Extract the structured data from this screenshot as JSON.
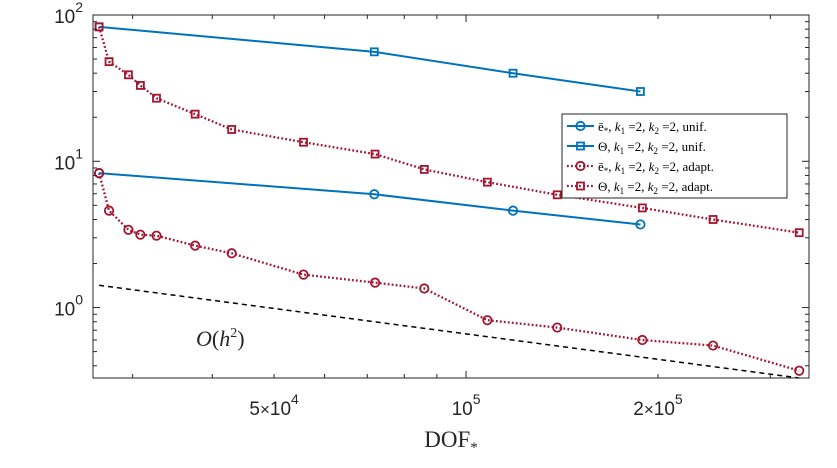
{
  "chart_data": {
    "type": "line",
    "title": "",
    "xlabel": "DOF",
    "xlabel_subscript": "*",
    "ylabel": "",
    "xscale": "log",
    "yscale": "log",
    "xlim": [
      26000,
      345000
    ],
    "ylim": [
      0.33,
      100
    ],
    "grid": false,
    "legend_position": "right",
    "x_ticks": [
      {
        "value": 50000,
        "mantissa": "5",
        "times": "×",
        "base": "10",
        "exp": "4"
      },
      {
        "value": 100000,
        "mantissa": "",
        "times": "",
        "base": "10",
        "exp": "5"
      },
      {
        "value": 200000,
        "mantissa": "2",
        "times": "×",
        "base": "10",
        "exp": "5"
      }
    ],
    "y_ticks": [
      {
        "value": 1,
        "base": "10",
        "exp": "0"
      },
      {
        "value": 10,
        "base": "10",
        "exp": "1"
      },
      {
        "value": 100,
        "base": "10",
        "exp": "2"
      }
    ],
    "series": [
      {
        "name": "ē*, k1 = 2, k2 = 2, unif.",
        "legend_parts": [
          "ē",
          "*",
          ", ",
          "k",
          "1",
          " =2, ",
          "k",
          "2",
          " =2, unif."
        ],
        "color": "#0072bd",
        "marker": "circle",
        "line_style": "solid",
        "x": [
          26580,
          71800,
          118500,
          187700
        ],
        "y": [
          8.3,
          5.95,
          4.6,
          3.7
        ]
      },
      {
        "name": "Θ, k1 = 2, k2 = 2, unif.",
        "legend_parts": [
          "Θ",
          "",
          ", ",
          "k",
          "1",
          " =2, ",
          "k",
          "2",
          " =2, unif."
        ],
        "color": "#0072bd",
        "marker": "square",
        "line_style": "solid",
        "x": [
          26580,
          71800,
          118500,
          187700
        ],
        "y": [
          83,
          56,
          40,
          30
        ]
      },
      {
        "name": "ē*, k1 = 2, k2 = 2, adapt.",
        "legend_parts": [
          "ē",
          "*",
          ", ",
          "k",
          "1",
          " =2, ",
          "k",
          "2",
          " =2, adapt."
        ],
        "color": "#a2142f",
        "marker": "circle",
        "line_style": "dotted",
        "x": [
          26580,
          27550,
          29550,
          30850,
          32700,
          37600,
          42900,
          55600,
          72000,
          86000,
          108000,
          139000,
          189000,
          244000,
          333000
        ],
        "y": [
          8.3,
          4.6,
          3.4,
          3.15,
          3.1,
          2.65,
          2.35,
          1.68,
          1.48,
          1.35,
          0.82,
          0.73,
          0.6,
          0.55,
          0.37
        ]
      },
      {
        "name": "Θ, k1 = 2, k2 = 2, adapt.",
        "legend_parts": [
          "Θ",
          "",
          ", ",
          "k",
          "1",
          " =2, ",
          "k",
          "2",
          " =2, adapt."
        ],
        "color": "#a2142f",
        "marker": "square",
        "line_style": "dotted",
        "x": [
          26580,
          27550,
          29550,
          30850,
          32700,
          37600,
          42900,
          55600,
          72000,
          86000,
          108000,
          139000,
          189000,
          244000,
          333000
        ],
        "y": [
          83,
          48,
          39,
          33,
          27,
          21,
          16.5,
          13.5,
          11.2,
          8.8,
          7.2,
          5.9,
          4.8,
          4.0,
          3.25
        ]
      }
    ],
    "reference_line": {
      "label": "O(h²)",
      "label_parts": [
        "O",
        "(",
        "h",
        "2",
        ")"
      ],
      "color": "#000000",
      "line_style": "dashed",
      "x": [
        26580,
        333000
      ],
      "y": [
        1.42,
        0.33
      ]
    }
  }
}
